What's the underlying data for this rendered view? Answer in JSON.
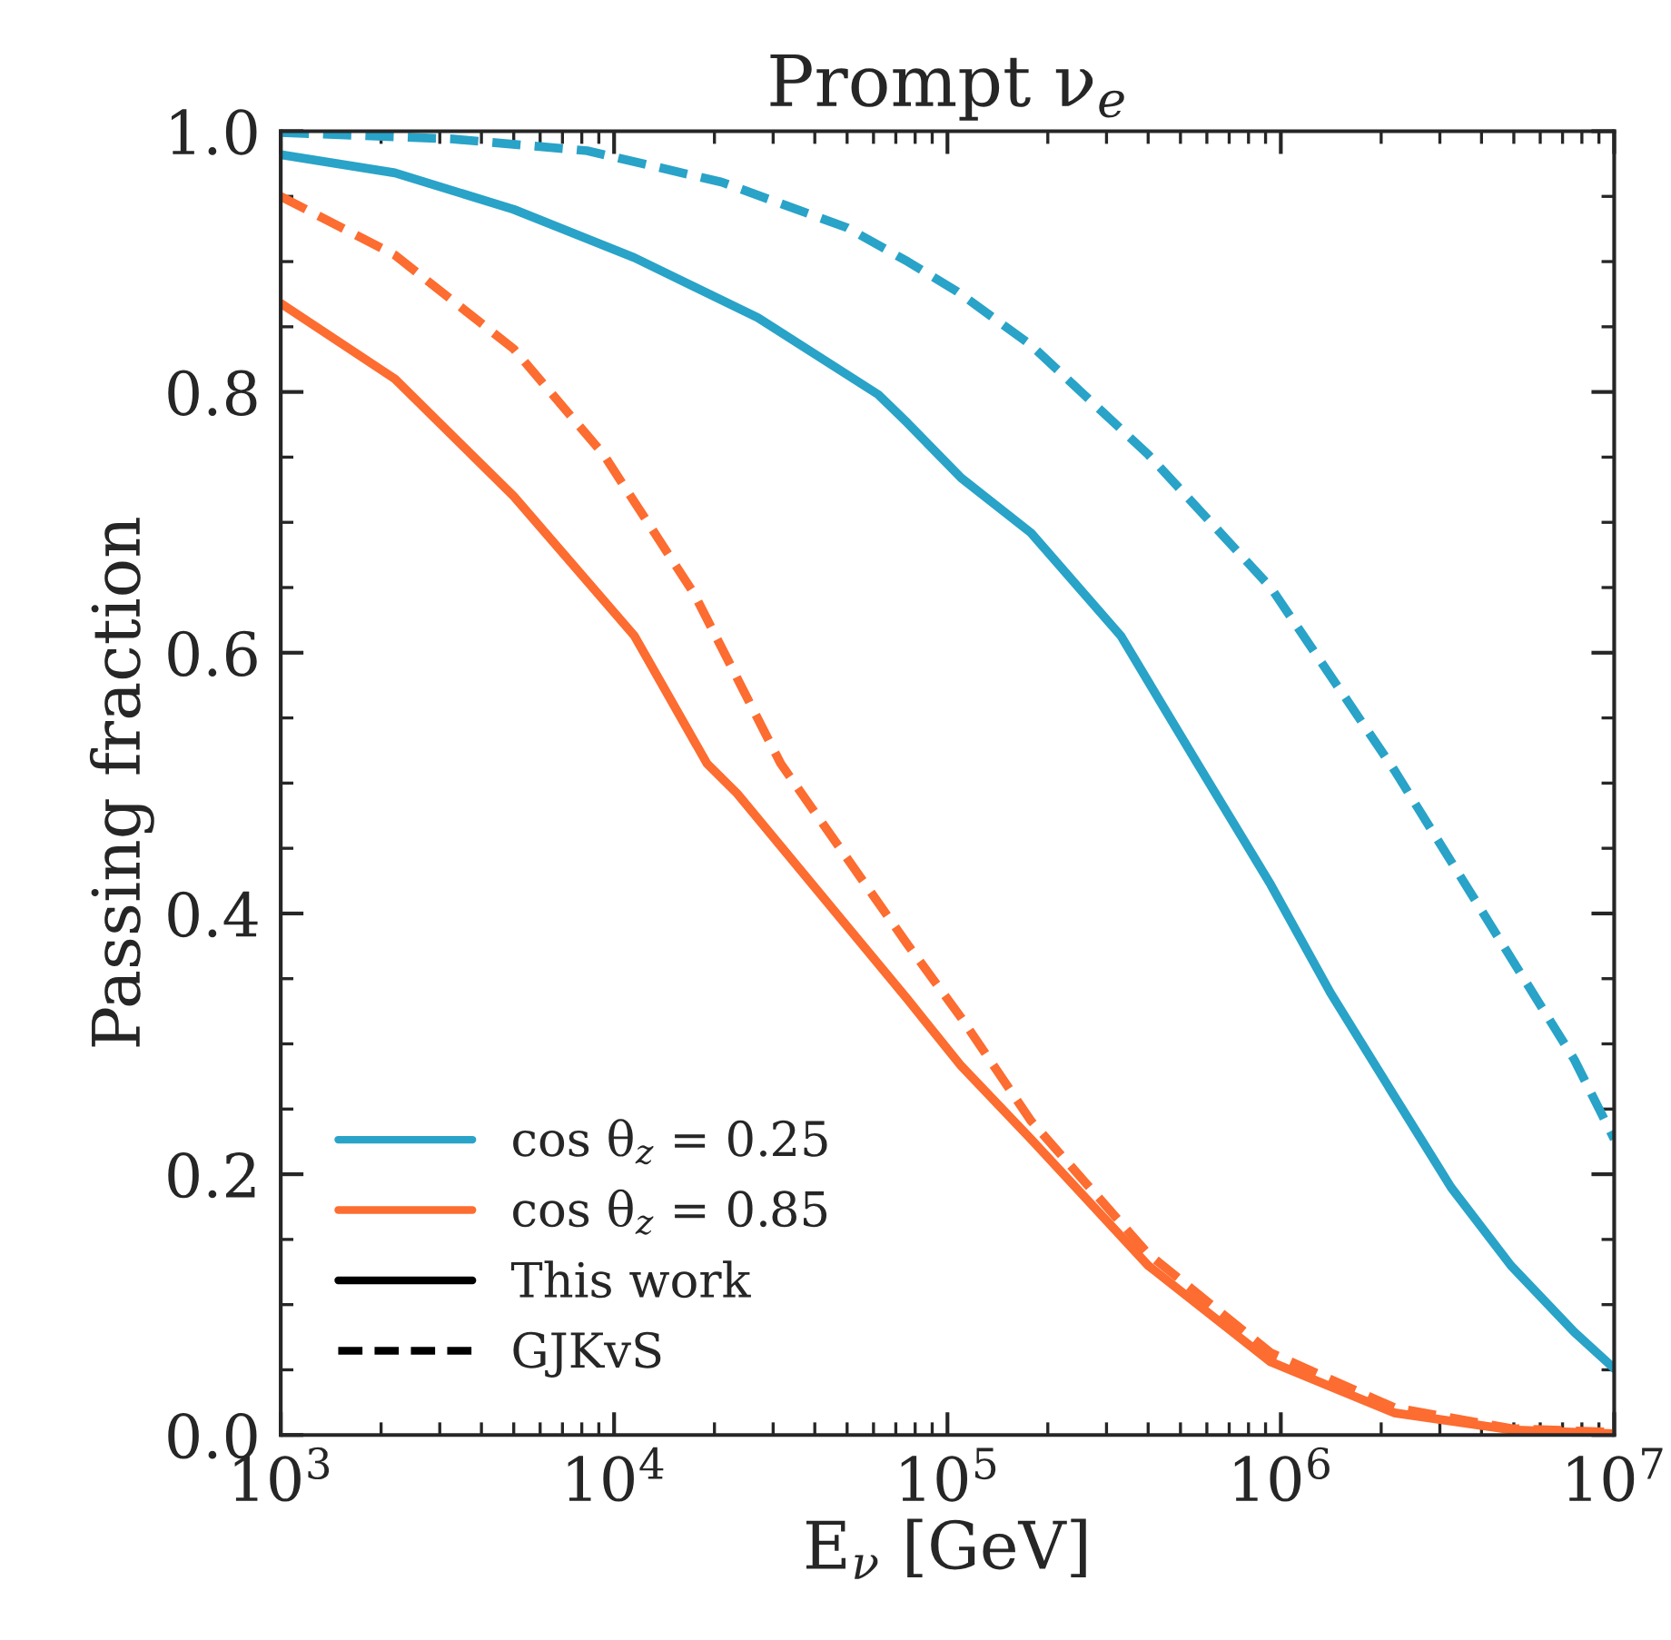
{
  "chart_data": {
    "type": "line",
    "title": "Prompt ν$_{e}$",
    "xlabel": "E$_{ν}$ [GeV]",
    "ylabel": "Passing fraction",
    "log": "x",
    "xlim": [
      1000,
      10000000
    ],
    "xticks": [
      {
        "value": 1000,
        "label": "10$^{3}$"
      },
      {
        "value": 10000,
        "label": "10$^{4}$"
      },
      {
        "value": 100000,
        "label": "10$^{5}$"
      },
      {
        "value": 1000000,
        "label": "10$^{6}$"
      },
      {
        "value": 10000000,
        "label": "10$^{7}$"
      }
    ],
    "ylim": [
      0,
      1
    ],
    "yticks": [
      {
        "value": 0,
        "label": "0.0"
      },
      {
        "value": 0.2,
        "label": "0.2"
      },
      {
        "value": 0.4,
        "label": "0.4"
      },
      {
        "value": 0.6,
        "label": "0.6"
      },
      {
        "value": 0.8,
        "label": "0.8"
      },
      {
        "value": 1,
        "label": "1.0"
      }
    ],
    "grid": false,
    "legend": "bottom left",
    "marker": "none",
    "annotations": [
      "This work",
      "GJKvS"
    ],
    "series": [
      {
        "name": "cos θ$_{z}$ = 0.25",
        "color": "#29a3c8",
        "line_style": "solid",
        "x": [
          1000,
          2200,
          5000,
          11500,
          27000,
          62000,
          76000,
          110000,
          178000,
          331000,
          562000,
          933000,
          1410000,
          2190000,
          3240000,
          4900000,
          7590000,
          10000000
        ],
        "values": [
          0.982,
          0.968,
          0.94,
          0.903,
          0.857,
          0.798,
          0.776,
          0.734,
          0.692,
          0.613,
          0.515,
          0.422,
          0.339,
          0.26,
          0.19,
          0.13,
          0.079,
          0.051
        ]
      },
      {
        "name": "cos θ$_{z}$ = 0.85",
        "color": "#fd6c30",
        "line_style": "solid",
        "x": [
          1000,
          2200,
          5000,
          11500,
          19000,
          23400,
          76000,
          110000,
          178000,
          400000,
          933000,
          2190000,
          4900000,
          10000000
        ],
        "values": [
          0.868,
          0.81,
          0.72,
          0.613,
          0.515,
          0.492,
          0.334,
          0.283,
          0.227,
          0.13,
          0.056,
          0.017,
          0.004,
          0.001
        ]
      },
      {
        "color": "#29a3c8",
        "line_style": "dashed",
        "x": [
          1000,
          3300,
          8300,
          21000,
          50000,
          76000,
          107000,
          178000,
          400000,
          933000,
          2190000,
          3240000,
          4900000,
          7590000,
          10000000
        ],
        "values": [
          0.999,
          0.994,
          0.985,
          0.961,
          0.926,
          0.9,
          0.877,
          0.836,
          0.752,
          0.65,
          0.51,
          0.44,
          0.366,
          0.288,
          0.227
        ]
      },
      {
        "color": "#fd6c30",
        "line_style": "dashed",
        "x": [
          1000,
          2200,
          5000,
          9300,
          17400,
          31600,
          76000,
          110000,
          178000,
          400000,
          933000,
          2190000,
          4900000,
          10000000
        ],
        "values": [
          0.95,
          0.905,
          0.833,
          0.752,
          0.645,
          0.515,
          0.376,
          0.32,
          0.241,
          0.139,
          0.063,
          0.021,
          0.005,
          0.002
        ]
      }
    ]
  }
}
